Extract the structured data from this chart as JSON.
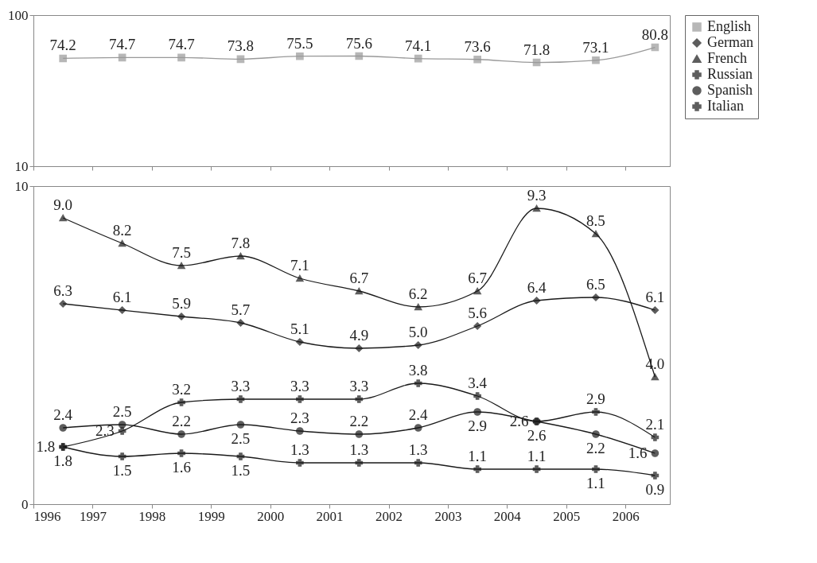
{
  "chart_data": [
    {
      "type": "line",
      "x": [
        1996.5,
        1997.5,
        1998.5,
        1999.5,
        2000.5,
        2001.5,
        2002.5,
        2003.5,
        2004.5,
        2005.5,
        2006.5
      ],
      "xlim": [
        1996,
        2006.75
      ],
      "xticks": [
        1996,
        1997,
        1998,
        1999,
        2000,
        2001,
        2002,
        2003,
        2004,
        2005,
        2006
      ],
      "ylim": [
        10,
        100
      ],
      "yticks": [
        10,
        100
      ],
      "tick_labels": "y",
      "legend": "right",
      "series": [
        {
          "name": "English",
          "color": "#999999",
          "marker": "square",
          "values": [
            74.2,
            74.7,
            74.7,
            73.8,
            75.5,
            75.6,
            74.1,
            73.6,
            71.8,
            73.1,
            80.8
          ],
          "value_labels": [
            "74.2",
            "74.7",
            "74.7",
            "73.8",
            "75.5",
            "75.6",
            "74.1",
            "73.6",
            "71.8",
            "73.1",
            "80.8"
          ]
        }
      ]
    },
    {
      "type": "line",
      "x": [
        1996.5,
        1997.5,
        1998.5,
        1999.5,
        2000.5,
        2001.5,
        2002.5,
        2003.5,
        2004.5,
        2005.5,
        2006.5
      ],
      "xlim": [
        1996,
        2006.75
      ],
      "xticks": [
        1996,
        1997,
        1998,
        1999,
        2000,
        2001,
        2002,
        2003,
        2004,
        2005,
        2006
      ],
      "ylim": [
        0,
        10
      ],
      "yticks": [
        0,
        10
      ],
      "legend": "right",
      "series": [
        {
          "name": "German",
          "color": "#1a1a1a",
          "marker": "diamond",
          "values": [
            6.3,
            6.1,
            5.9,
            5.7,
            5.1,
            4.9,
            5.0,
            5.6,
            6.4,
            6.5,
            6.1
          ],
          "value_labels": [
            "6.3",
            "6.1",
            "5.9",
            "5.7",
            "5.1",
            "4.9",
            "5.0",
            "5.6",
            "6.4",
            "6.5",
            "6.1"
          ]
        },
        {
          "name": "French",
          "color": "#1a1a1a",
          "marker": "triangle",
          "values": [
            9.0,
            8.2,
            7.5,
            7.8,
            7.1,
            6.7,
            6.2,
            6.7,
            9.3,
            8.5,
            4.0
          ],
          "value_labels": [
            "9.0",
            "8.2",
            "7.5",
            "7.8",
            "7.1",
            "6.7",
            "6.2",
            "6.7",
            "9.3",
            "8.5",
            "4.0"
          ]
        },
        {
          "name": "Russian",
          "color": "#1a1a1a",
          "marker": "cross",
          "values": [
            1.8,
            2.3,
            3.2,
            3.3,
            3.3,
            3.3,
            3.8,
            3.4,
            2.6,
            2.9,
            2.1
          ],
          "value_labels": [
            "1.8",
            "2.3",
            "3.2",
            "3.3",
            "3.3",
            "3.3",
            "3.8",
            "3.4",
            "2.6",
            "2.9",
            "2.1"
          ]
        },
        {
          "name": "Spanish",
          "color": "#1a1a1a",
          "marker": "circle",
          "values": [
            2.4,
            2.5,
            2.2,
            2.5,
            2.3,
            2.2,
            2.4,
            2.9,
            2.6,
            2.2,
            1.6
          ],
          "value_labels": [
            "2.4",
            "2.5",
            "2.2",
            "2.5",
            "2.3",
            "2.2",
            "2.4",
            "2.9",
            "2.6",
            "2.2",
            "1.6"
          ]
        },
        {
          "name": "Italian",
          "color": "#1a1a1a",
          "marker": "cross",
          "values": [
            1.8,
            1.5,
            1.6,
            1.5,
            1.3,
            1.3,
            1.3,
            1.1,
            1.1,
            1.1,
            0.9
          ],
          "value_labels": [
            "1.8",
            "1.5",
            "1.6",
            "1.5",
            "1.3",
            "1.3",
            "1.3",
            "1.1",
            "1.1",
            "1.1",
            "0.9"
          ]
        }
      ]
    }
  ]
}
